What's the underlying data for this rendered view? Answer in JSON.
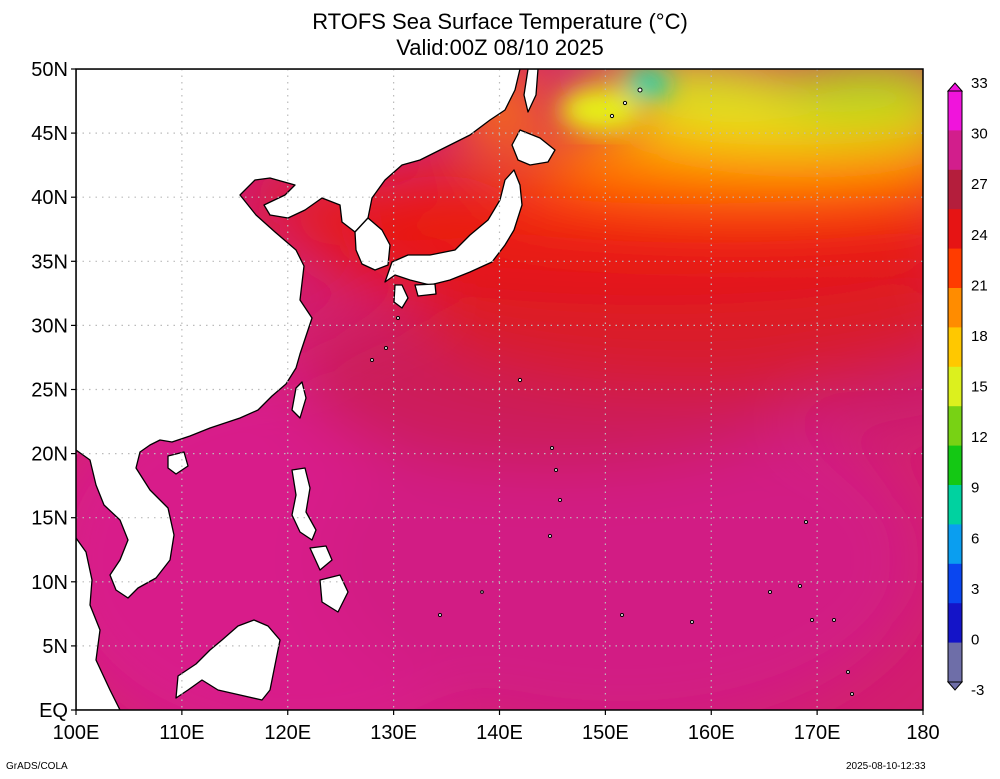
{
  "title": "RTOFS Sea Surface Temperature (°C)",
  "subtitle": "Valid:00Z 08/10 2025",
  "footer_left": "GrADS/COLA",
  "footer_right": "2025-08-10-12:33",
  "map": {
    "lon_range": [
      100,
      180
    ],
    "lat_range": [
      0,
      50
    ],
    "lon_ticks": [
      {
        "value": 100,
        "label": "100E"
      },
      {
        "value": 110,
        "label": "110E"
      },
      {
        "value": 120,
        "label": "120E"
      },
      {
        "value": 130,
        "label": "130E"
      },
      {
        "value": 140,
        "label": "140E"
      },
      {
        "value": 150,
        "label": "150E"
      },
      {
        "value": 160,
        "label": "160E"
      },
      {
        "value": 170,
        "label": "170E"
      },
      {
        "value": 180,
        "label": "180"
      }
    ],
    "lat_ticks": [
      {
        "value": 0,
        "label": "EQ"
      },
      {
        "value": 5,
        "label": "5N"
      },
      {
        "value": 10,
        "label": "10N"
      },
      {
        "value": 15,
        "label": "15N"
      },
      {
        "value": 20,
        "label": "20N"
      },
      {
        "value": 25,
        "label": "25N"
      },
      {
        "value": 30,
        "label": "30N"
      },
      {
        "value": 35,
        "label": "35N"
      },
      {
        "value": 40,
        "label": "40N"
      },
      {
        "value": 45,
        "label": "45N"
      },
      {
        "value": 50,
        "label": "50N"
      }
    ],
    "grid": true,
    "land_color": "#ffffff"
  },
  "colorbar": {
    "ticks": [
      -3,
      0,
      3,
      6,
      9,
      12,
      15,
      18,
      21,
      24,
      27,
      30,
      33
    ],
    "colors": [
      "#6e6ea8",
      "#1414c8",
      "#0a46f0",
      "#0a9ef0",
      "#00d2a0",
      "#14c814",
      "#78d214",
      "#dcf01e",
      "#ffc800",
      "#ff8c00",
      "#ff3c00",
      "#e61414",
      "#b41e3c",
      "#d21e8c",
      "#f014dc"
    ]
  }
}
